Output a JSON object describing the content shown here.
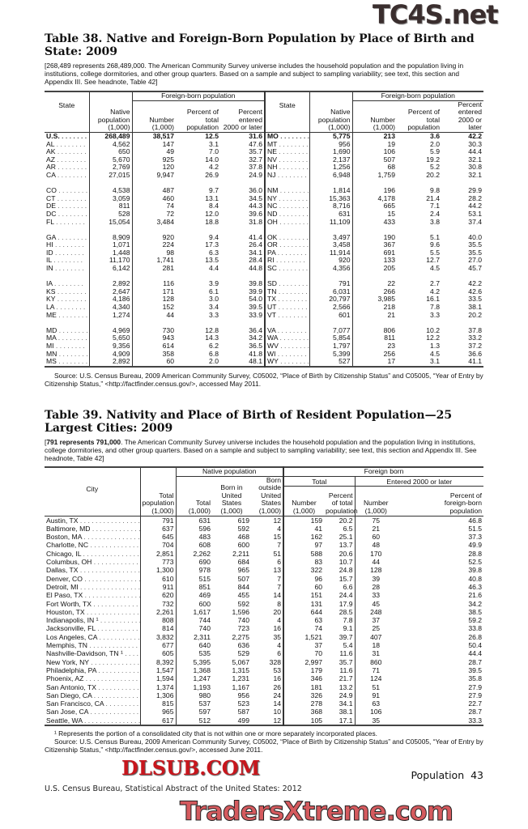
{
  "table38": {
    "title": "Table 38. Native and Foreign-Born Population by Place of Birth and State: 2009",
    "note": "[268,489 represents 268,489,000. The American Community Survey universe includes the household population and the population living in institutions, college dormitories, and other group quarters. Based on a sample and subject to sampling variability; see text, this section and Appendix III. See headnote, Table 42]",
    "header": {
      "state": "State",
      "foreign_group": "Foreign-born population",
      "native": "Native population (1,000)",
      "number": "Number (1,000)",
      "pct_total": "Percent of total population",
      "pct_entered": "Percent entered 2000 or later"
    },
    "groups": [
      [
        [
          "U.S.",
          "268,489",
          "38,517",
          "12.5",
          "31.6",
          "MO",
          "5,775",
          "213",
          "3.6",
          "42.2"
        ],
        [
          "AL",
          "4,562",
          "147",
          "3.1",
          "47.6",
          "MT",
          "956",
          "19",
          "2.0",
          "30.3"
        ],
        [
          "AK",
          "650",
          "49",
          "7.0",
          "35.7",
          "NE",
          "1,690",
          "106",
          "5.9",
          "44.4"
        ],
        [
          "AZ",
          "5,670",
          "925",
          "14.0",
          "32.7",
          "NV",
          "2,137",
          "507",
          "19.2",
          "32.1"
        ],
        [
          "AR",
          "2,769",
          "120",
          "4.2",
          "37.8",
          "NH",
          "1,256",
          "68",
          "5.2",
          "30.8"
        ],
        [
          "CA",
          "27,015",
          "9,947",
          "26.9",
          "24.9",
          "NJ",
          "6,948",
          "1,759",
          "20.2",
          "32.1"
        ]
      ],
      [
        [
          "CO",
          "4,538",
          "487",
          "9.7",
          "36.0",
          "NM",
          "1,814",
          "196",
          "9.8",
          "29.9"
        ],
        [
          "CT",
          "3,059",
          "460",
          "13.1",
          "34.5",
          "NY",
          "15,363",
          "4,178",
          "21.4",
          "28.2"
        ],
        [
          "DE",
          "811",
          "74",
          "8.4",
          "44.3",
          "NC",
          "8,716",
          "665",
          "7.1",
          "44.2"
        ],
        [
          "DC",
          "528",
          "72",
          "12.0",
          "39.6",
          "ND",
          "631",
          "15",
          "2.4",
          "53.1"
        ],
        [
          "FL",
          "15,054",
          "3,484",
          "18.8",
          "31.8",
          "OH",
          "11,109",
          "433",
          "3.8",
          "37.4"
        ]
      ],
      [
        [
          "GA",
          "8,909",
          "920",
          "9.4",
          "41.4",
          "OK",
          "3,497",
          "190",
          "5.1",
          "40.0"
        ],
        [
          "HI",
          "1,071",
          "224",
          "17.3",
          "26.4",
          "OR",
          "3,458",
          "367",
          "9.6",
          "35.5"
        ],
        [
          "ID",
          "1,448",
          "98",
          "6.3",
          "34.1",
          "PA",
          "11,914",
          "691",
          "5.5",
          "35.5"
        ],
        [
          "IL",
          "11,170",
          "1,741",
          "13.5",
          "28.4",
          "RI",
          "920",
          "133",
          "12.7",
          "27.0"
        ],
        [
          "IN",
          "6,142",
          "281",
          "4.4",
          "44.8",
          "SC",
          "4,356",
          "205",
          "4.5",
          "45.7"
        ]
      ],
      [
        [
          "IA",
          "2,892",
          "116",
          "3.9",
          "39.8",
          "SD",
          "791",
          "22",
          "2.7",
          "42.2"
        ],
        [
          "KS",
          "2,647",
          "171",
          "6.1",
          "39.9",
          "TN",
          "6,031",
          "266",
          "4.2",
          "42.6"
        ],
        [
          "KY",
          "4,186",
          "128",
          "3.0",
          "54.0",
          "TX",
          "20,797",
          "3,985",
          "16.1",
          "33.5"
        ],
        [
          "LA",
          "4,340",
          "152",
          "3.4",
          "39.5",
          "UT",
          "2,566",
          "218",
          "7.8",
          "38.1"
        ],
        [
          "ME",
          "1,274",
          "44",
          "3.3",
          "33.9",
          "VT",
          "601",
          "21",
          "3.3",
          "20.2"
        ]
      ],
      [
        [
          "MD",
          "4,969",
          "730",
          "12.8",
          "36.4",
          "VA",
          "7,077",
          "806",
          "10.2",
          "37.8"
        ],
        [
          "MA",
          "5,650",
          "943",
          "14.3",
          "34.2",
          "WA",
          "5,854",
          "811",
          "12.2",
          "33.2"
        ],
        [
          "MI",
          "9,356",
          "614",
          "6.2",
          "36.5",
          "WV",
          "1,797",
          "23",
          "1.3",
          "37.2"
        ],
        [
          "MN",
          "4,909",
          "358",
          "6.8",
          "41.8",
          "WI",
          "5,399",
          "256",
          "4.5",
          "36.6"
        ],
        [
          "MS",
          "2,892",
          "60",
          "2.0",
          "48.1",
          "WY",
          "527",
          "17",
          "3.1",
          "41.1"
        ]
      ]
    ],
    "source": "Source: U.S. Census Bureau, 2009 American Community Survey, C05002, “Place of Birth by Citizenship Status” and C05005, “Year of Entry by Citizenship Status,” <http://factfinder.census.gov/>, accessed May 2011."
  },
  "table39": {
    "title": "Table 39. Nativity and Place of Birth of Resident Population—25 Largest Cities: 2009",
    "note_bold": "791 represents 791,000",
    "note": ". The American Community Survey universe includes the household population and the population living in institutions, college dormitories, and other group quarters. Based on a sample and subject to sampling variability; see text, this section and Appendix III. See headnote, Table 42]",
    "header": {
      "city": "City",
      "total_pop": "Total population (1,000)",
      "native_group": "Native population",
      "foreign_group": "Foreign born",
      "total_sub": "Total",
      "entered_sub": "Entered 2000 or later",
      "native_total": "Total (1,000)",
      "born_us": "Born in United States (1,000)",
      "born_outside": "Born outside United States (1,000)",
      "fb_number": "Number (1,000)",
      "fb_pct": "Percent of total population",
      "en_number": "Number (1,000)",
      "en_pct": "Percent of foreign-born population"
    },
    "rows": [
      [
        "Austin, TX",
        "791",
        "631",
        "619",
        "12",
        "159",
        "20.2",
        "75",
        "46.8"
      ],
      [
        "Baltimore, MD",
        "637",
        "596",
        "592",
        "4",
        "41",
        "6.5",
        "21",
        "51.5"
      ],
      [
        "Boston, MA",
        "645",
        "483",
        "468",
        "15",
        "162",
        "25.1",
        "60",
        "37.3"
      ],
      [
        "Charlotte, NC",
        "704",
        "608",
        "600",
        "7",
        "97",
        "13.7",
        "48",
        "49.9"
      ],
      [
        "Chicago, IL",
        "2,851",
        "2,262",
        "2,211",
        "51",
        "588",
        "20.6",
        "170",
        "28.8"
      ],
      [
        "Columbus, OH",
        "773",
        "690",
        "684",
        "6",
        "83",
        "10.7",
        "44",
        "52.5"
      ],
      [
        "Dallas, TX",
        "1,300",
        "978",
        "965",
        "13",
        "322",
        "24.8",
        "128",
        "39.8"
      ],
      [
        "Denver, CO",
        "610",
        "515",
        "507",
        "7",
        "96",
        "15.7",
        "39",
        "40.8"
      ],
      [
        "Detroit, MI",
        "911",
        "851",
        "844",
        "7",
        "60",
        "6.6",
        "28",
        "46.3"
      ],
      [
        "El Paso, TX",
        "620",
        "469",
        "455",
        "14",
        "151",
        "24.4",
        "33",
        "21.6"
      ],
      [
        "Fort Worth, TX",
        "732",
        "600",
        "592",
        "8",
        "131",
        "17.9",
        "45",
        "34.2"
      ],
      [
        "Houston, TX",
        "2,261",
        "1,617",
        "1,596",
        "20",
        "644",
        "28.5",
        "248",
        "38.5"
      ],
      [
        "Indianapolis, IN ¹",
        "808",
        "744",
        "740",
        "4",
        "63",
        "7.8",
        "37",
        "59.2"
      ],
      [
        "Jacksonville, FL",
        "814",
        "740",
        "723",
        "16",
        "74",
        "9.1",
        "25",
        "33.8"
      ],
      [
        "Los Angeles, CA",
        "3,832",
        "2,311",
        "2,275",
        "35",
        "1,521",
        "39.7",
        "407",
        "26.8"
      ],
      [
        "Memphis, TN",
        "677",
        "640",
        "636",
        "4",
        "37",
        "5.4",
        "18",
        "50.4"
      ],
      [
        "Nashville-Davidson, TN ¹",
        "605",
        "535",
        "529",
        "6",
        "70",
        "11.6",
        "31",
        "44.4"
      ],
      [
        "New York, NY",
        "8,392",
        "5,395",
        "5,067",
        "328",
        "2,997",
        "35.7",
        "860",
        "28.7"
      ],
      [
        "Philadelphia, PA",
        "1,547",
        "1,368",
        "1,315",
        "53",
        "179",
        "11.6",
        "71",
        "39.5"
      ],
      [
        "Phoenix, AZ",
        "1,594",
        "1,247",
        "1,231",
        "16",
        "346",
        "21.7",
        "124",
        "35.8"
      ],
      [
        "San Antonio, TX",
        "1,374",
        "1,193",
        "1,167",
        "26",
        "181",
        "13.2",
        "51",
        "27.9"
      ],
      [
        "San Diego, CA",
        "1,306",
        "980",
        "956",
        "24",
        "326",
        "24.9",
        "91",
        "27.9"
      ],
      [
        "San Francisco, CA",
        "815",
        "537",
        "523",
        "14",
        "278",
        "34.1",
        "63",
        "22.7"
      ],
      [
        "San Jose, CA",
        "965",
        "597",
        "587",
        "10",
        "368",
        "38.1",
        "106",
        "28.7"
      ],
      [
        "Seattle, WA",
        "617",
        "512",
        "499",
        "12",
        "105",
        "17.1",
        "35",
        "33.3"
      ]
    ],
    "footnote": "¹ Represents the portion of a consolidated city that is not within one or more separately incorporated places.",
    "source": "Source: U.S. Census Bureau, 2009 American Community Survey, C05002, “Place of Birth by Citizenship Status” and C05005, “Year of Entry by Citizenship Status,” <http://factfinder.census.gov/>, accessed June 2011."
  },
  "footer": {
    "left": "U.S. Census Bureau, Statistical Abstract of the United States: 2012",
    "section": "Population",
    "page": "43"
  },
  "watermarks": {
    "top": "TC4S.net",
    "middle": "DLSUB.COM",
    "bottom": "TradersXtreme.com"
  }
}
